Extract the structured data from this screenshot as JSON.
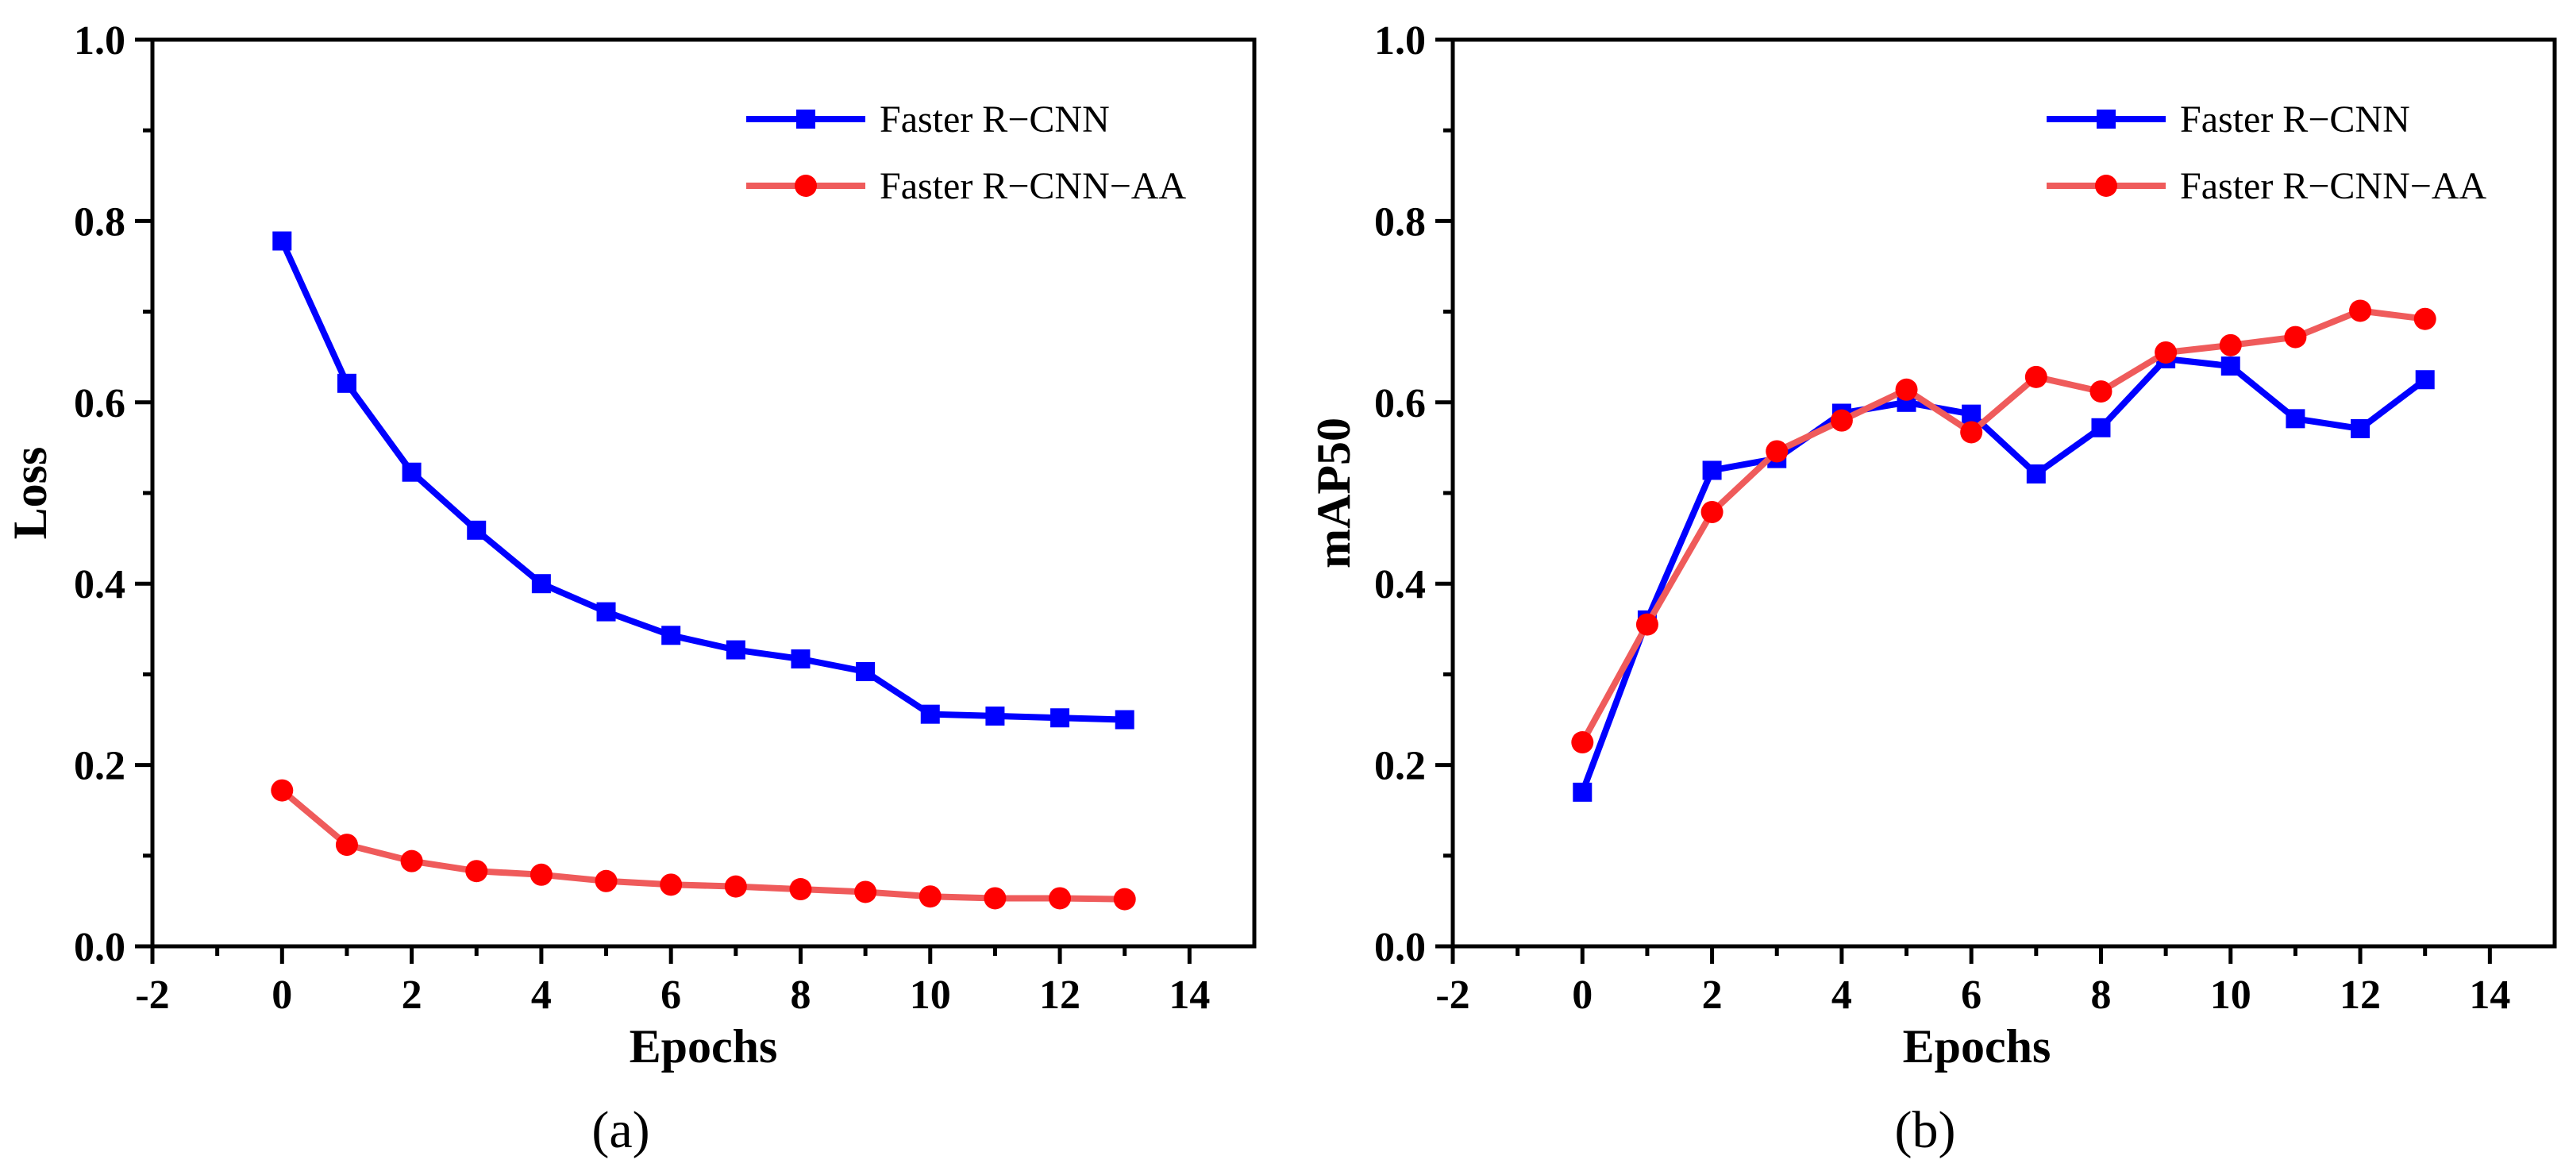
{
  "figure": {
    "panels": [
      "(a)",
      "(b)"
    ]
  },
  "colors": {
    "faster_rcnn": "#0000ff",
    "faster_rcnn_aa": "#ff0000",
    "faster_rcnn_aa_line": "#ef5b5b",
    "axis": "#000000"
  },
  "chart_data": [
    {
      "type": "line",
      "panel_label": "(a)",
      "title": "",
      "xlabel": "Epochs",
      "ylabel": "Loss",
      "xlim": [
        -2,
        15
      ],
      "ylim": [
        0.0,
        1.0
      ],
      "xticks": [
        -2,
        0,
        2,
        4,
        6,
        8,
        10,
        12,
        14
      ],
      "yticks": [
        0.0,
        0.2,
        0.4,
        0.6,
        0.8,
        1.0
      ],
      "xtick_labels": [
        "-2",
        "0",
        "2",
        "4",
        "6",
        "8",
        "10",
        "12",
        "14"
      ],
      "ytick_labels": [
        "0.0",
        "0.2",
        "0.4",
        "0.6",
        "0.8",
        "1.0"
      ],
      "legend_position": "top-right",
      "x": [
        0,
        1,
        2,
        3,
        4,
        5,
        6,
        7,
        8,
        9,
        10,
        11,
        12,
        13
      ],
      "series": [
        {
          "name": "Faster R−CNN",
          "marker": "square",
          "color_key": "faster_rcnn",
          "values": [
            0.778,
            0.621,
            0.523,
            0.459,
            0.4,
            0.369,
            0.343,
            0.327,
            0.317,
            0.303,
            0.256,
            0.254,
            0.252,
            0.25
          ]
        },
        {
          "name": "Faster R−CNN−AA",
          "marker": "circle",
          "color_key": "faster_rcnn_aa",
          "values": [
            0.172,
            0.112,
            0.094,
            0.083,
            0.079,
            0.072,
            0.068,
            0.066,
            0.063,
            0.06,
            0.055,
            0.053,
            0.053,
            0.052
          ]
        }
      ]
    },
    {
      "type": "line",
      "panel_label": "(b)",
      "title": "",
      "xlabel": "Epochs",
      "ylabel": "mAP50",
      "xlim": [
        -2,
        15
      ],
      "ylim": [
        0.0,
        1.0
      ],
      "xticks": [
        -2,
        0,
        2,
        4,
        6,
        8,
        10,
        12,
        14
      ],
      "yticks": [
        0.0,
        0.2,
        0.4,
        0.6,
        0.8,
        1.0
      ],
      "xtick_labels": [
        "-2",
        "0",
        "2",
        "4",
        "6",
        "8",
        "10",
        "12",
        "14"
      ],
      "ytick_labels": [
        "0.0",
        "0.2",
        "0.4",
        "0.6",
        "0.8",
        "1.0"
      ],
      "legend_position": "top-right",
      "x": [
        0,
        1,
        2,
        3,
        4,
        5,
        6,
        7,
        8,
        9,
        10,
        11,
        12,
        13
      ],
      "series": [
        {
          "name": "Faster R−CNN",
          "marker": "square",
          "color_key": "faster_rcnn",
          "values": [
            0.17,
            0.36,
            0.525,
            0.538,
            0.588,
            0.6,
            0.587,
            0.521,
            0.572,
            0.648,
            0.64,
            0.582,
            0.571,
            0.625
          ]
        },
        {
          "name": "Faster R−CNN−AA",
          "marker": "circle",
          "color_key": "faster_rcnn_aa",
          "values": [
            0.225,
            0.355,
            0.479,
            0.546,
            0.58,
            0.614,
            0.567,
            0.628,
            0.612,
            0.655,
            0.663,
            0.672,
            0.701,
            0.692
          ]
        }
      ]
    }
  ]
}
